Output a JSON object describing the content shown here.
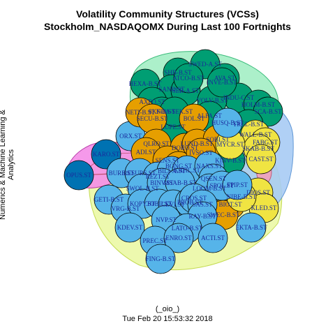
{
  "title_line1": "Volatility Community Structures (VCSs)",
  "title_line2": "Stockholm_NASDAQOMX During Last 100 Fortnights",
  "side_label": "Numerics & Machine Learning & Analytics",
  "footer_face": "(_oio_)",
  "footer_time": "Tue Feb 20 15:53:32 2018",
  "colors": {
    "teal": "#009e73",
    "orange": "#e69f00",
    "yellow": "#f0e442",
    "blue": "#56b4e9",
    "darkblue": "#0072b2",
    "pink": "#cc79a7",
    "hull_green": "#a8f0c8",
    "hull_blue": "#a8ccf4",
    "hull_yellow": "#eaf8a0",
    "hull_magenta": "#f58ee8"
  },
  "nodes": [
    {
      "label": "SWED-A.ST",
      "color": "teal"
    },
    {
      "label": "SHB-B.ST",
      "color": "teal"
    },
    {
      "label": "AVA.ST",
      "color": "teal"
    },
    {
      "label": "HEXA-B.ST",
      "color": "teal"
    },
    {
      "label": "SAND.ST",
      "color": "teal"
    },
    {
      "label": "SEB-A.ST",
      "color": "teal"
    },
    {
      "label": "INDU-C.ST",
      "color": "teal"
    },
    {
      "label": "HOLM-B.ST",
      "color": "teal"
    },
    {
      "label": "AXFO.ST",
      "color": "teal"
    },
    {
      "label": "VOLV-B.ST",
      "color": "teal"
    },
    {
      "label": "INVE-B.ST",
      "color": "teal"
    },
    {
      "label": "SCA-B.ST",
      "color": "teal"
    },
    {
      "label": "ATCO-B.ST",
      "color": "teal"
    },
    {
      "label": "SKF-B.ST",
      "color": "teal"
    },
    {
      "label": "ALFA.ST",
      "color": "teal"
    },
    {
      "label": "LUPE.ST",
      "color": "teal"
    },
    {
      "label": "NDA-SEK.ST",
      "color": "teal"
    },
    {
      "label": "TREL-B.ST",
      "color": "teal"
    },
    {
      "label": "KINV-B.ST",
      "color": "teal"
    },
    {
      "label": "ORX.ST",
      "color": "blue"
    },
    {
      "label": "NETI-B.ST",
      "color": "orange"
    },
    {
      "label": "SECU-B.ST",
      "color": "orange"
    },
    {
      "label": "BOL.ST",
      "color": "orange"
    },
    {
      "label": "QLRO.ST",
      "color": "orange"
    },
    {
      "label": "ADI.ST",
      "color": "orange"
    },
    {
      "label": "DORO.ST",
      "color": "orange"
    },
    {
      "label": "SENS.ST",
      "color": "orange"
    },
    {
      "label": "LUND-B.ST",
      "color": "orange"
    },
    {
      "label": "BONG.ST",
      "color": "orange"
    },
    {
      "label": "SOBI.ST",
      "color": "orange"
    },
    {
      "label": "IVSO.ST",
      "color": "orange"
    },
    {
      "label": "BIOT.ST",
      "color": "orange"
    },
    {
      "label": "SWEC-B.ST",
      "color": "orange"
    },
    {
      "label": "WALL-B.ST",
      "color": "yellow"
    },
    {
      "label": "FABG.ST",
      "color": "yellow"
    },
    {
      "label": "SKAB-B.ST",
      "color": "yellow"
    },
    {
      "label": "CAST.ST",
      "color": "yellow"
    },
    {
      "label": "MYCR.ST",
      "color": "yellow"
    },
    {
      "label": "DIOS.ST",
      "color": "yellow"
    },
    {
      "label": "KLED.ST",
      "color": "yellow"
    },
    {
      "label": "NIBE-B.ST",
      "color": "yellow"
    },
    {
      "label": "KARO.ST",
      "color": "darkblue"
    },
    {
      "label": "OPUS.ST",
      "color": "darkblue"
    },
    {
      "label": "BURE.ST",
      "color": "blue"
    },
    {
      "label": "RESURS.ST",
      "color": "blue"
    },
    {
      "label": "REZT.ST",
      "color": "blue"
    },
    {
      "label": "BILI-A.ST",
      "color": "blue"
    },
    {
      "label": "KAHL.ST",
      "color": "blue"
    },
    {
      "label": "NAXS.ST",
      "color": "blue"
    },
    {
      "label": "QSEN.ST",
      "color": "blue"
    },
    {
      "label": "LOOM-B.ST",
      "color": "blue"
    },
    {
      "label": "SPOL.ST",
      "color": "blue"
    },
    {
      "label": "FPIP.ST",
      "color": "blue"
    },
    {
      "label": "SWOL-B.ST",
      "color": "blue"
    },
    {
      "label": "BINV.ST",
      "color": "blue"
    },
    {
      "label": "MSAB-B.ST",
      "color": "blue"
    },
    {
      "label": "GETI-B.ST",
      "color": "blue"
    },
    {
      "label": "VRG-B.ST",
      "color": "blue"
    },
    {
      "label": "KOPY.ST",
      "color": "blue"
    },
    {
      "label": "TOBII.ST",
      "color": "blue"
    },
    {
      "label": "CEVI.ST",
      "color": "blue"
    },
    {
      "label": "PROB.ST",
      "color": "blue"
    },
    {
      "label": "CROS.ST",
      "color": "blue"
    },
    {
      "label": "SAS.ST",
      "color": "blue"
    },
    {
      "label": "KDEV.ST",
      "color": "blue"
    },
    {
      "label": "NVP.ST",
      "color": "blue"
    },
    {
      "label": "RAY-B.ST",
      "color": "blue"
    },
    {
      "label": "LATO-B.ST",
      "color": "blue"
    },
    {
      "label": "PREC.ST",
      "color": "blue"
    },
    {
      "label": "ENRO.ST",
      "color": "blue"
    },
    {
      "label": "ACTI.ST",
      "color": "blue"
    },
    {
      "label": "EKTA-B.ST",
      "color": "blue"
    },
    {
      "label": "HUSQ-B.ST",
      "color": "blue"
    },
    {
      "label": "FING-B.ST",
      "color": "blue"
    }
  ]
}
